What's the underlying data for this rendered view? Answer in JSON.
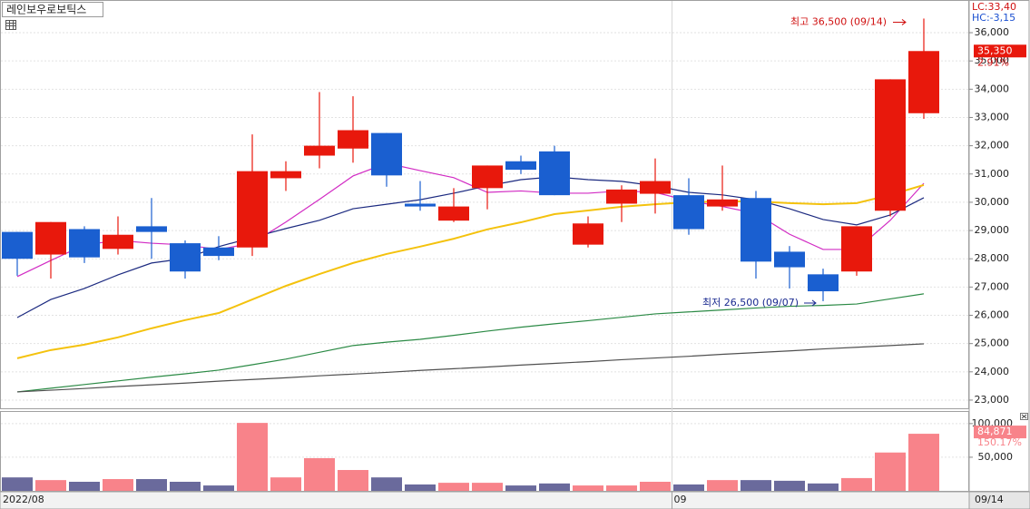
{
  "chart_data": {
    "type": "candlestick",
    "title": "레인보우로보틱스",
    "categories": [
      "2022/08",
      null,
      null,
      null,
      null,
      null,
      null,
      null,
      null,
      null,
      null,
      null,
      null,
      null,
      null,
      null,
      null,
      null,
      null,
      null,
      "09",
      null,
      null,
      null,
      null,
      null,
      null,
      "09/14"
    ],
    "open": [
      28950,
      28150,
      29050,
      28350,
      29150,
      28550,
      28400,
      28400,
      30850,
      31650,
      31900,
      32450,
      29950,
      29350,
      30500,
      31450,
      31800,
      28500,
      29950,
      30300,
      30250,
      29850,
      30150,
      28250,
      27450,
      27550,
      29700,
      33150
    ],
    "high": [
      28950,
      29300,
      29150,
      29500,
      30150,
      28650,
      28800,
      32400,
      31450,
      33900,
      33750,
      32450,
      30750,
      30500,
      31300,
      31650,
      32000,
      29500,
      30600,
      31550,
      30850,
      31300,
      30400,
      28450,
      27650,
      29150,
      34350,
      36500
    ],
    "low": [
      27400,
      27300,
      27850,
      28150,
      28000,
      27300,
      27950,
      28100,
      30400,
      31200,
      31400,
      30550,
      29700,
      29300,
      29750,
      31000,
      30250,
      28400,
      29300,
      29600,
      28850,
      29700,
      27300,
      26950,
      26500,
      27400,
      29500,
      32950
    ],
    "close": [
      28000,
      29300,
      28050,
      28850,
      28950,
      27550,
      28100,
      31100,
      31100,
      32000,
      32550,
      30950,
      29850,
      29850,
      31300,
      31150,
      30250,
      29250,
      30450,
      30750,
      29050,
      30100,
      27900,
      27700,
      26850,
      29150,
      34350,
      35350
    ],
    "up_color": "#e8180c",
    "down_color": "#1a5fd0",
    "ylim": [
      22710,
      37060
    ],
    "yticks": [
      {
        "value": 23000,
        "label": "23,000"
      },
      {
        "value": 24000,
        "label": "24,000"
      },
      {
        "value": 25000,
        "label": "25,000"
      },
      {
        "value": 26000,
        "label": "26,000"
      },
      {
        "value": 27000,
        "label": "27,000"
      },
      {
        "value": 28000,
        "label": "28,000"
      },
      {
        "value": 29000,
        "label": "29,000"
      },
      {
        "value": 30000,
        "label": "30,000"
      },
      {
        "value": 31000,
        "label": "31,000"
      },
      {
        "value": 32000,
        "label": "32,000"
      },
      {
        "value": 33000,
        "label": "33,000"
      },
      {
        "value": 34000,
        "label": "34,000"
      },
      {
        "value": 35000,
        "label": "35,000"
      },
      {
        "value": 36000,
        "label": "36,000"
      }
    ],
    "grid": true,
    "moving_averages": [
      {
        "color": "#d22cc4",
        "values": [
          27370,
          27940,
          28490,
          28650,
          28550,
          28490,
          28330,
          28550,
          29300,
          30100,
          30930,
          31380,
          31120,
          30870,
          30350,
          30400,
          30320,
          30320,
          30400,
          30350,
          30050,
          29850,
          29600,
          28870,
          28330,
          28330,
          29360,
          30670
        ]
      },
      {
        "color": "#1c2a80",
        "values": [
          25920,
          26560,
          26950,
          27430,
          27850,
          28010,
          28430,
          28750,
          29070,
          29360,
          29770,
          29930,
          30090,
          30320,
          30580,
          30800,
          30900,
          30800,
          30740,
          30580,
          30350,
          30260,
          30090,
          29770,
          29390,
          29200,
          29550,
          30160
        ]
      },
      {
        "color": "#f4c20d",
        "values": [
          24480,
          24770,
          24960,
          25220,
          25540,
          25830,
          26080,
          26560,
          27040,
          27460,
          27850,
          28170,
          28430,
          28710,
          29040,
          29290,
          29580,
          29710,
          29840,
          29930,
          30000,
          30030,
          30030,
          29970,
          29930,
          29970,
          30260,
          30610
        ]
      },
      {
        "color": "#2b8a45",
        "values": [
          23290,
          23420,
          23550,
          23680,
          23810,
          23930,
          24060,
          24250,
          24450,
          24690,
          24930,
          25050,
          25150,
          25290,
          25440,
          25580,
          25700,
          25810,
          25930,
          26050,
          26120,
          26190,
          26260,
          26320,
          26350,
          26400,
          26580,
          26760
        ]
      },
      {
        "color": "#505050",
        "values": [
          23290,
          23350,
          23410,
          23480,
          23540,
          23600,
          23670,
          23730,
          23790,
          23860,
          23920,
          23980,
          24050,
          24110,
          24170,
          24240,
          24300,
          24360,
          24430,
          24490,
          24550,
          24620,
          24680,
          24740,
          24810,
          24870,
          24930,
          24990
        ]
      }
    ],
    "high_annotation": "최고 36,500 (09/14)",
    "low_annotation": "최저 26,500 (09/07)",
    "lc_label": "LC:33,40",
    "hc_label": "HC:-3,15",
    "last_label": "35,350",
    "change_label": "2.91%",
    "volume": {
      "values": [
        20000,
        16000,
        13500,
        17500,
        17500,
        13500,
        8000,
        101000,
        20000,
        48600,
        31000,
        20000,
        9500,
        12000,
        12000,
        8000,
        11000,
        8000,
        8000,
        13500,
        9500,
        16000,
        16000,
        15000,
        11000,
        19000,
        57000,
        84871
      ],
      "up_color": "#f8838a",
      "down_color": "#6a6a9c",
      "ylim": [
        0,
        116000
      ],
      "yticks": [
        {
          "value": 50000,
          "label": "50,000"
        },
        {
          "value": 100000,
          "label": "100,000"
        }
      ],
      "last_label": "84,871",
      "change_label": "150.17%"
    }
  }
}
